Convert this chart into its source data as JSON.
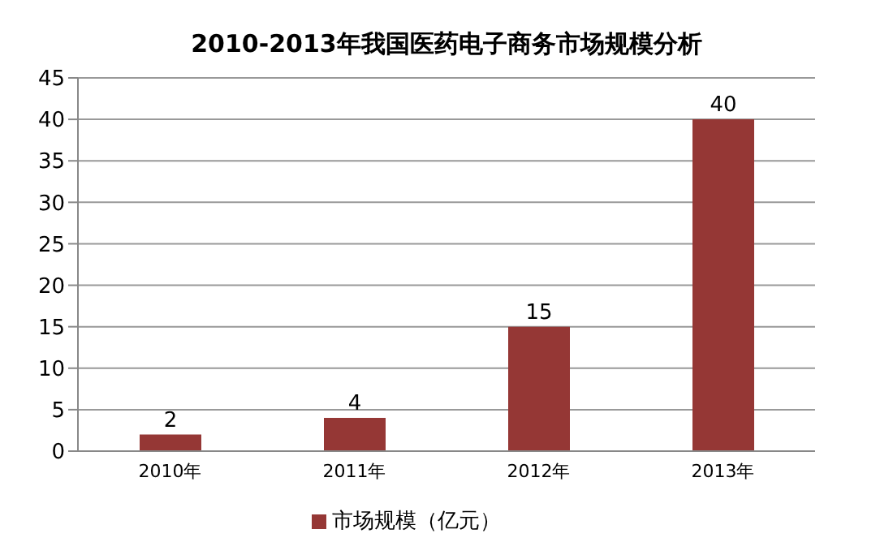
{
  "chart_data": {
    "type": "bar",
    "title": "2010-2013年我国医药电子商务市场规模分析",
    "categories": [
      "2010年",
      "2011年",
      "2012年",
      "2013年"
    ],
    "series": [
      {
        "name": "市场规模（亿元）",
        "color": "#953735",
        "values": [
          2,
          4,
          15,
          40
        ]
      }
    ],
    "ylim": [
      0,
      45
    ],
    "yticks": [
      0,
      5,
      10,
      15,
      20,
      25,
      30,
      35,
      40,
      45
    ],
    "grid": "y",
    "legend": "bottom",
    "data_labels": true
  }
}
